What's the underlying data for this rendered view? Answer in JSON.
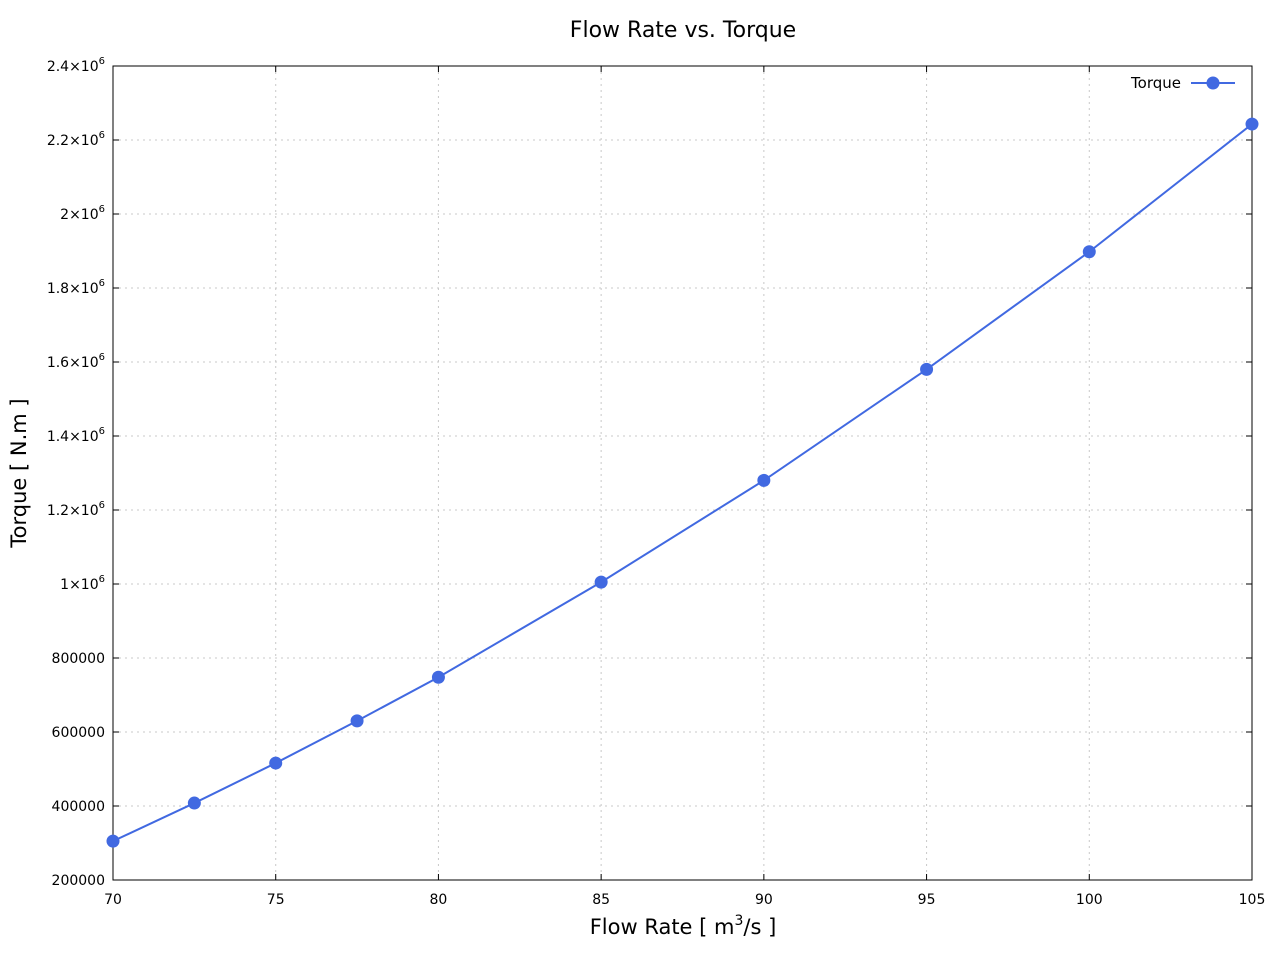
{
  "chart_data": {
    "type": "line",
    "title": "Flow Rate vs. Torque",
    "xlabel": {
      "base": "Flow Rate [ m",
      "sup": "3",
      "tail": "/s ]"
    },
    "ylabel": "Torque [ N.m ]",
    "xlim": [
      70,
      105
    ],
    "ylim": [
      200000,
      2400000
    ],
    "grid": true,
    "legend_position": "top-right",
    "x_ticks": [
      {
        "value": 70,
        "label": "70"
      },
      {
        "value": 75,
        "label": "75"
      },
      {
        "value": 80,
        "label": "80"
      },
      {
        "value": 85,
        "label": "85"
      },
      {
        "value": 90,
        "label": "90"
      },
      {
        "value": 95,
        "label": "95"
      },
      {
        "value": 100,
        "label": "100"
      },
      {
        "value": 105,
        "label": "105"
      }
    ],
    "y_ticks": [
      {
        "value": 200000,
        "label": "200000"
      },
      {
        "value": 400000,
        "label": "400000"
      },
      {
        "value": 600000,
        "label": "600000"
      },
      {
        "value": 800000,
        "label": "800000"
      },
      {
        "value": 1000000,
        "mant": "1",
        "exp": "6"
      },
      {
        "value": 1200000,
        "mant": "1.2",
        "exp": "6"
      },
      {
        "value": 1400000,
        "mant": "1.4",
        "exp": "6"
      },
      {
        "value": 1600000,
        "mant": "1.6",
        "exp": "6"
      },
      {
        "value": 1800000,
        "mant": "1.8",
        "exp": "6"
      },
      {
        "value": 2000000,
        "mant": "2",
        "exp": "6"
      },
      {
        "value": 2200000,
        "mant": "2.2",
        "exp": "6"
      },
      {
        "value": 2400000,
        "mant": "2.4",
        "exp": "6"
      }
    ],
    "series": [
      {
        "name": "Torque",
        "color": "#4169e1",
        "x": [
          70,
          72.5,
          75,
          77.5,
          80,
          85,
          90,
          95,
          100,
          105
        ],
        "y": [
          305000,
          408000,
          516000,
          630000,
          748000,
          1005000,
          1280000,
          1580000,
          1898000,
          2243000
        ]
      }
    ]
  }
}
